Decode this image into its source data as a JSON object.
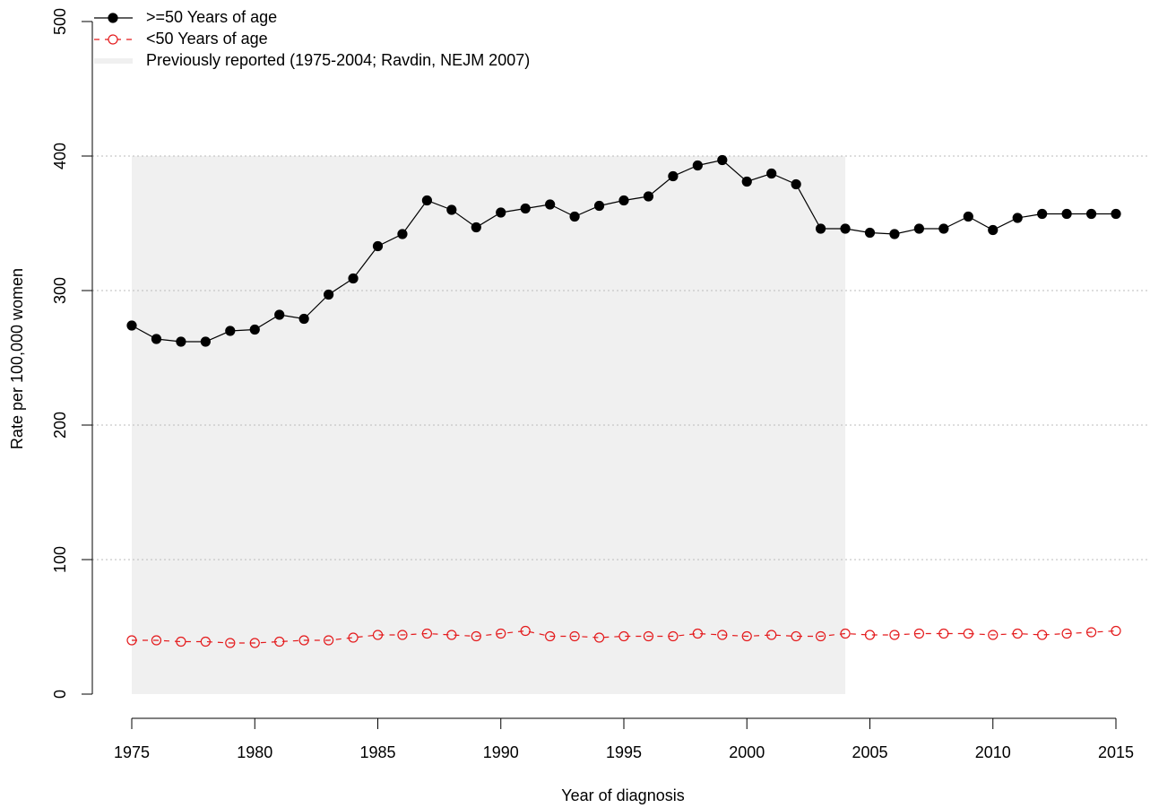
{
  "chart_data": {
    "type": "line",
    "x_label": "Year of diagnosis",
    "y_label": "Rate per 100,000 women",
    "x": [
      1975,
      1976,
      1977,
      1978,
      1979,
      1980,
      1981,
      1982,
      1983,
      1984,
      1985,
      1986,
      1987,
      1988,
      1989,
      1990,
      1991,
      1992,
      1993,
      1994,
      1995,
      1996,
      1997,
      1998,
      1999,
      2000,
      2001,
      2002,
      2003,
      2004,
      2005,
      2006,
      2007,
      2008,
      2009,
      2010,
      2011,
      2012,
      2013,
      2014,
      2015
    ],
    "series": [
      {
        "name": ">=50 Years of age",
        "color": "#000000",
        "marker": "filled",
        "line": "solid",
        "values": [
          274,
          264,
          262,
          262,
          270,
          271,
          282,
          279,
          297,
          309,
          333,
          342,
          367,
          360,
          347,
          358,
          361,
          364,
          355,
          363,
          367,
          370,
          385,
          393,
          397,
          381,
          387,
          379,
          346,
          346,
          343,
          342,
          346,
          346,
          355,
          345,
          354,
          357,
          357,
          357,
          357
        ]
      },
      {
        "name": "<50 Years of age",
        "color": "#e41a1c",
        "marker": "open",
        "line": "dashed",
        "values": [
          40,
          40,
          39,
          39,
          38,
          38,
          39,
          40,
          40,
          42,
          44,
          44,
          45,
          44,
          43,
          45,
          47,
          43,
          43,
          42,
          43,
          43,
          43,
          45,
          44,
          43,
          44,
          43,
          43,
          45,
          44,
          44,
          45,
          45,
          45,
          44,
          45,
          44,
          45,
          46,
          47
        ]
      }
    ],
    "shaded": {
      "label": "Previously reported (1975-2004; Ravdin, NEJM 2007)",
      "x": [
        1975,
        2004
      ],
      "y": [
        0,
        400
      ],
      "color": "#f0f0f0"
    },
    "xlim": [
      1975,
      2015
    ],
    "xticks": [
      1975,
      1980,
      1985,
      1990,
      1995,
      2000,
      2005,
      2010,
      2015
    ],
    "ylim": [
      0,
      500
    ],
    "yticks": [
      0,
      100,
      200,
      300,
      400,
      500
    ],
    "grid_lines": [
      100,
      200,
      300,
      400
    ]
  }
}
